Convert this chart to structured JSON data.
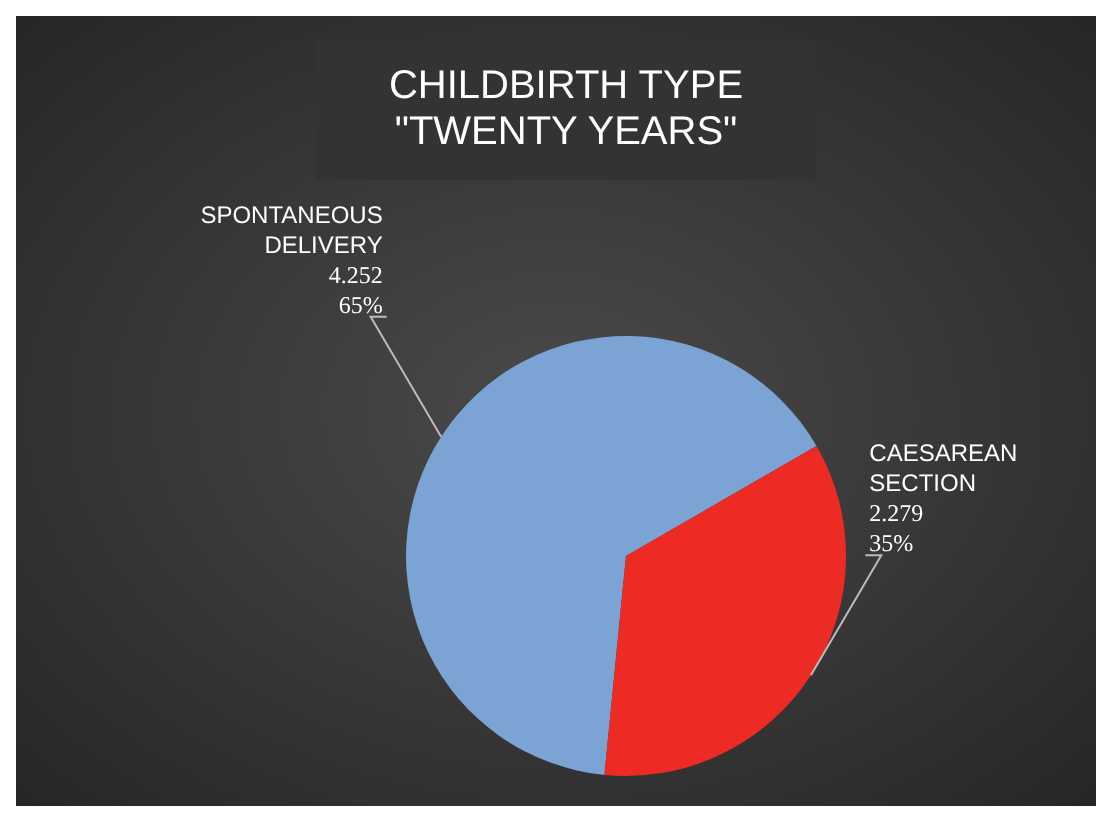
{
  "chart_data": {
    "type": "pie",
    "title": "CHILDBIRTH TYPE\n\"TWENTY YEARS\"",
    "categories": [
      "SPONTANEOUS\nDELIVERY",
      "CAESAREAN\nSECTION"
    ],
    "values": [
      4252,
      2279
    ],
    "colors": [
      "#7ba3d4",
      "#ee2a24"
    ],
    "value_labels": [
      "4.252\n65%",
      "2.279\n35%"
    ],
    "legend": false
  }
}
